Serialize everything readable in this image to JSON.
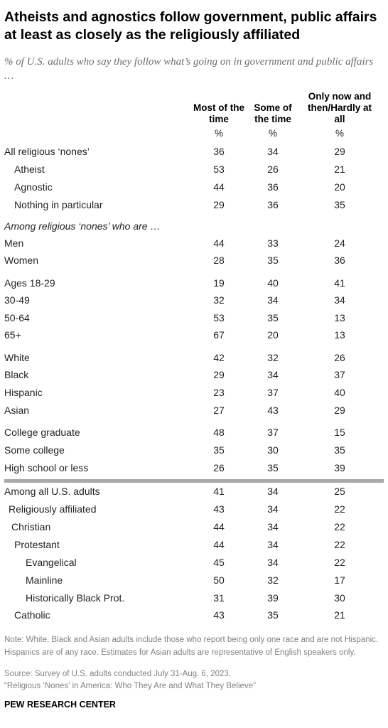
{
  "title": "Atheists and agnostics follow government, public affairs at least as closely as the religiously affiliated",
  "subtitle": "% of U.S. adults who say they follow what’s going on in government and public affairs …",
  "chart_data": {
    "type": "table",
    "columns": [
      "Most of the time",
      "Some of the time",
      "Only now and then/Hardly at all"
    ],
    "unit_row": [
      "%",
      "%",
      "%"
    ],
    "rows": [
      {
        "label": "All religious ‘nones’",
        "values": [
          36,
          34,
          29
        ]
      },
      {
        "label": "Atheist",
        "values": [
          53,
          26,
          21
        ]
      },
      {
        "label": "Agnostic",
        "values": [
          44,
          36,
          20
        ]
      },
      {
        "label": "Nothing in particular",
        "values": [
          29,
          36,
          35
        ]
      },
      {
        "label": "Among religious ‘nones’ who are …",
        "values": null
      },
      {
        "label": "Men",
        "values": [
          44,
          33,
          24
        ]
      },
      {
        "label": "Women",
        "values": [
          28,
          35,
          36
        ]
      },
      {
        "label": "Ages 18-29",
        "values": [
          19,
          40,
          41
        ]
      },
      {
        "label": "30-49",
        "values": [
          32,
          34,
          34
        ]
      },
      {
        "label": "50-64",
        "values": [
          53,
          35,
          13
        ]
      },
      {
        "label": "65+",
        "values": [
          67,
          20,
          13
        ]
      },
      {
        "label": "White",
        "values": [
          42,
          32,
          26
        ]
      },
      {
        "label": "Black",
        "values": [
          29,
          34,
          37
        ]
      },
      {
        "label": "Hispanic",
        "values": [
          23,
          37,
          40
        ]
      },
      {
        "label": "Asian",
        "values": [
          27,
          43,
          29
        ]
      },
      {
        "label": "College graduate",
        "values": [
          48,
          37,
          15
        ]
      },
      {
        "label": "Some college",
        "values": [
          35,
          30,
          35
        ]
      },
      {
        "label": "High school or less",
        "values": [
          26,
          35,
          39
        ]
      },
      {
        "label": "Among all U.S. adults",
        "values": [
          41,
          34,
          25
        ]
      },
      {
        "label": "Religiously affiliated",
        "values": [
          43,
          34,
          22
        ]
      },
      {
        "label": "Christian",
        "values": [
          44,
          34,
          22
        ]
      },
      {
        "label": "Protestant",
        "values": [
          44,
          34,
          22
        ]
      },
      {
        "label": "Evangelical",
        "values": [
          45,
          34,
          22
        ]
      },
      {
        "label": "Mainline",
        "values": [
          50,
          32,
          17
        ]
      },
      {
        "label": "Historically Black Prot.",
        "values": [
          31,
          39,
          30
        ]
      },
      {
        "label": "Catholic",
        "values": [
          43,
          35,
          21
        ]
      }
    ]
  },
  "note": "Note: White, Black and Asian adults include those who report being only one race and are not Hispanic. Hispanics are of any race. Estimates for Asian adults are representative of English speakers only.",
  "source": "Source: Survey of U.S. adults conducted July 31-Aug. 6, 2023.",
  "report": "“Religious ‘Nones’ in America: Who They Are and What They Believe”",
  "brand": "PEW RESEARCH CENTER"
}
